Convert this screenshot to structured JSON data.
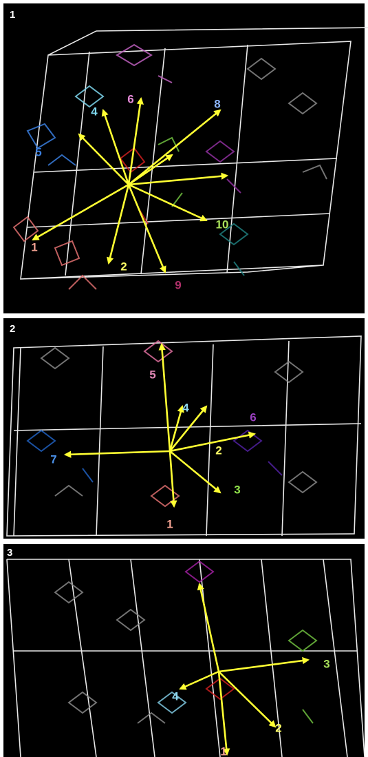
{
  "panels": [
    {
      "label": "1",
      "vector_labels": [
        "4",
        "6",
        "8",
        "5",
        "1",
        "2",
        "9",
        "10"
      ]
    },
    {
      "label": "2",
      "vector_labels": [
        "5",
        "4",
        "6",
        "2",
        "7",
        "3",
        "1"
      ]
    },
    {
      "label": "3",
      "vector_labels": [
        "4",
        "3",
        "2",
        "1"
      ]
    }
  ]
}
